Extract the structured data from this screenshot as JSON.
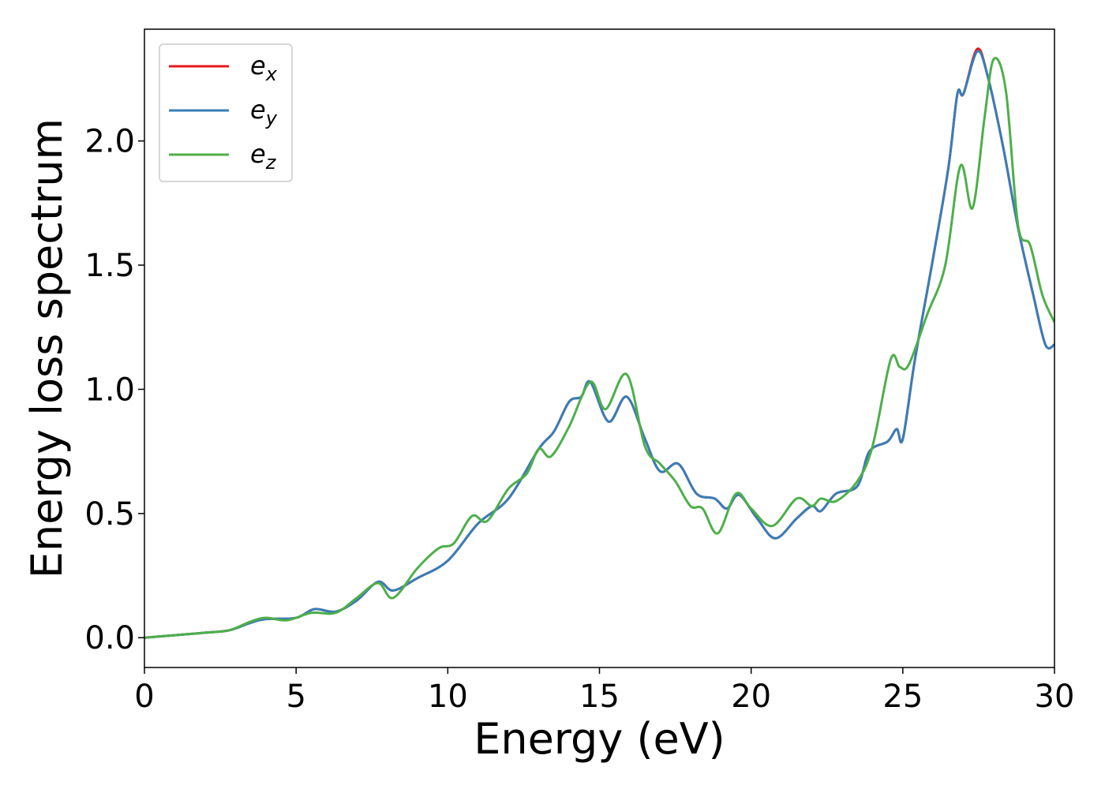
{
  "chart_data": {
    "type": "line",
    "xlabel": "Energy (eV)",
    "ylabel": "Energy loss spectrum",
    "xlim": [
      0,
      30
    ],
    "ylim": [
      -0.12,
      2.45
    ],
    "xticks": [
      0,
      5,
      10,
      15,
      20,
      25,
      30
    ],
    "yticks": [
      0.0,
      0.5,
      1.0,
      1.5,
      2.0
    ],
    "xtick_labels": [
      "0",
      "5",
      "10",
      "15",
      "20",
      "25",
      "30"
    ],
    "ytick_labels": [
      "0.0",
      "0.5",
      "1.0",
      "1.5",
      "2.0"
    ],
    "grid": false,
    "legend_position": "top-left",
    "series": [
      {
        "name": "e",
        "subscript": "x",
        "color": "#e41a1c",
        "x": [
          0,
          1,
          2,
          2.8,
          3.5,
          4,
          5,
          5.6,
          6.3,
          7,
          7.7,
          8.2,
          9,
          10,
          11,
          12,
          13,
          13.5,
          14,
          14.4,
          14.7,
          15.3,
          15.9,
          16.5,
          17.0,
          17.6,
          18.2,
          18.8,
          19.2,
          19.6,
          20.2,
          20.8,
          21.5,
          22.0,
          22.3,
          22.8,
          23.5,
          23.9,
          24.5,
          24.8,
          25.0,
          25.4,
          26.0,
          26.5,
          26.8,
          27.0,
          27.45,
          27.8,
          28.3,
          28.8,
          29.3,
          29.7,
          30
        ],
        "y": [
          0,
          0.01,
          0.02,
          0.03,
          0.06,
          0.075,
          0.08,
          0.115,
          0.105,
          0.15,
          0.225,
          0.19,
          0.24,
          0.31,
          0.46,
          0.56,
          0.76,
          0.83,
          0.95,
          0.97,
          1.03,
          0.87,
          0.97,
          0.8,
          0.67,
          0.7,
          0.58,
          0.56,
          0.52,
          0.575,
          0.48,
          0.4,
          0.48,
          0.53,
          0.51,
          0.58,
          0.61,
          0.75,
          0.79,
          0.84,
          0.8,
          1.12,
          1.53,
          1.89,
          2.19,
          2.19,
          2.37,
          2.26,
          1.98,
          1.65,
          1.38,
          1.18,
          1.18
        ]
      },
      {
        "name": "e",
        "subscript": "y",
        "color": "#377eb8",
        "x": [
          0,
          1,
          2,
          2.8,
          3.5,
          4,
          5,
          5.6,
          6.3,
          7,
          7.7,
          8.2,
          9,
          10,
          11,
          12,
          13,
          13.5,
          14,
          14.4,
          14.7,
          15.3,
          15.9,
          16.5,
          17.0,
          17.6,
          18.2,
          18.8,
          19.2,
          19.6,
          20.2,
          20.8,
          21.5,
          22.0,
          22.3,
          22.8,
          23.5,
          23.9,
          24.5,
          24.8,
          25.0,
          25.4,
          26.0,
          26.5,
          26.8,
          27.0,
          27.45,
          27.8,
          28.3,
          28.8,
          29.3,
          29.7,
          30
        ],
        "y": [
          0,
          0.01,
          0.02,
          0.03,
          0.06,
          0.075,
          0.08,
          0.115,
          0.105,
          0.15,
          0.225,
          0.19,
          0.24,
          0.31,
          0.46,
          0.56,
          0.76,
          0.83,
          0.95,
          0.97,
          1.03,
          0.87,
          0.97,
          0.8,
          0.67,
          0.7,
          0.58,
          0.56,
          0.52,
          0.575,
          0.48,
          0.4,
          0.48,
          0.53,
          0.51,
          0.58,
          0.61,
          0.75,
          0.79,
          0.84,
          0.8,
          1.12,
          1.53,
          1.89,
          2.19,
          2.19,
          2.36,
          2.26,
          1.98,
          1.65,
          1.38,
          1.18,
          1.18
        ]
      },
      {
        "name": "e",
        "subscript": "z",
        "color": "#4daf4a",
        "x": [
          0,
          1,
          2,
          2.8,
          3.5,
          4,
          4.7,
          5.5,
          6.3,
          7,
          7.7,
          8.2,
          9,
          9.7,
          10.2,
          10.8,
          11.3,
          12,
          12.6,
          13.0,
          13.4,
          14.0,
          14.7,
          15.2,
          15.9,
          16.5,
          17.0,
          17.5,
          18.0,
          18.4,
          18.9,
          19.5,
          20.0,
          20.7,
          21.5,
          22.0,
          22.3,
          22.8,
          23.5,
          24.0,
          24.6,
          24.9,
          25.2,
          25.8,
          26.4,
          26.9,
          27.3,
          27.7,
          28.0,
          28.4,
          28.8,
          29.2,
          29.6,
          30
        ],
        "y": [
          0,
          0.01,
          0.02,
          0.03,
          0.065,
          0.08,
          0.07,
          0.1,
          0.1,
          0.16,
          0.22,
          0.16,
          0.28,
          0.36,
          0.38,
          0.49,
          0.47,
          0.6,
          0.66,
          0.76,
          0.73,
          0.85,
          1.03,
          0.92,
          1.06,
          0.77,
          0.7,
          0.63,
          0.53,
          0.52,
          0.42,
          0.58,
          0.52,
          0.45,
          0.56,
          0.53,
          0.56,
          0.55,
          0.63,
          0.77,
          1.12,
          1.09,
          1.1,
          1.3,
          1.5,
          1.9,
          1.73,
          2.1,
          2.33,
          2.2,
          1.66,
          1.58,
          1.38,
          1.27
        ]
      }
    ]
  }
}
